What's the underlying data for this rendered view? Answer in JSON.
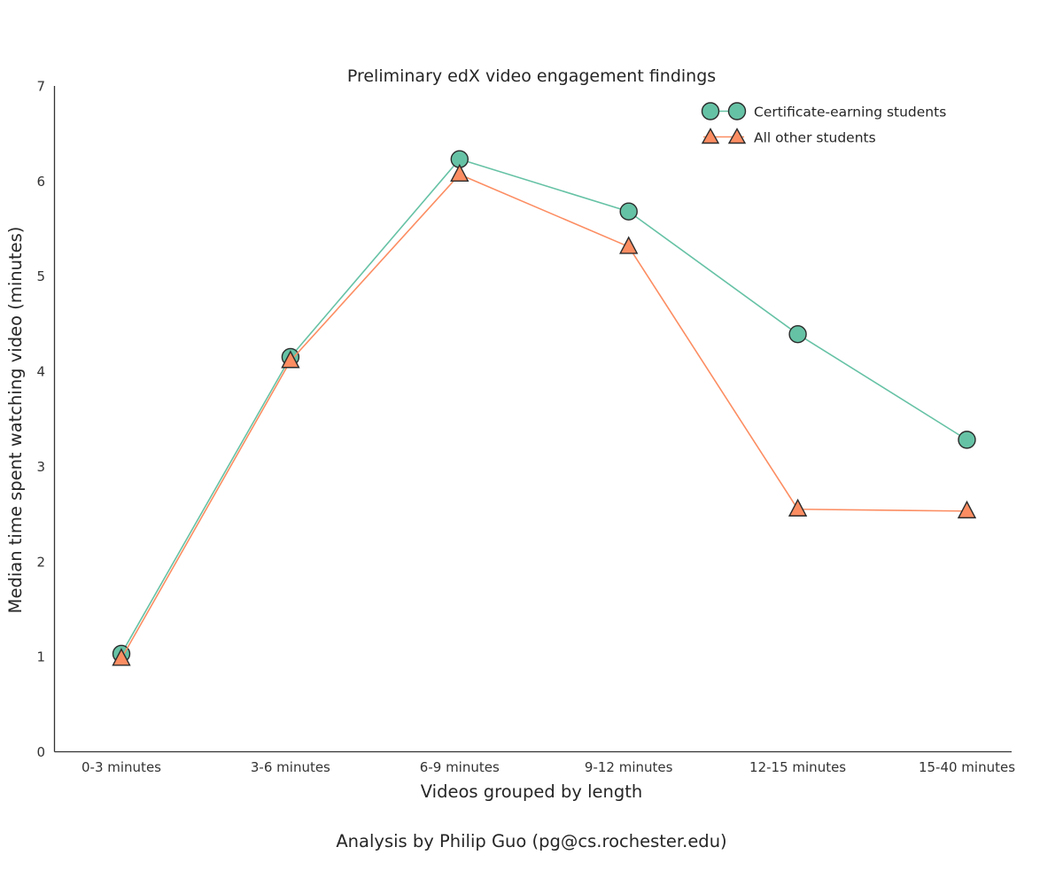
{
  "chart_data": {
    "type": "line",
    "title": "Preliminary edX video engagement findings",
    "xlabel": "Videos grouped by length",
    "ylabel": "Median time spent watching video (minutes)",
    "caption": "Analysis by Philip Guo (pg@cs.rochester.edu)",
    "categories": [
      "0-3 minutes",
      "3-6 minutes",
      "6-9 minutes",
      "9-12 minutes",
      "12-15 minutes",
      "15-40 minutes"
    ],
    "yticks": [
      0,
      1,
      2,
      3,
      4,
      5,
      6,
      7
    ],
    "ylim": [
      0,
      7
    ],
    "grid": false,
    "legend_position": "upper right",
    "series": [
      {
        "name": "Certificate-earning students",
        "marker": "circle",
        "color": "#66c2a5",
        "values": [
          1.03,
          4.15,
          6.23,
          5.68,
          4.39,
          3.28
        ]
      },
      {
        "name": "All other students",
        "marker": "triangle",
        "color": "#fc8d62",
        "values": [
          0.98,
          4.11,
          6.07,
          5.31,
          2.55,
          2.53
        ]
      }
    ],
    "colors": {
      "axis": "#333333",
      "text": "#262626",
      "marker_edge": "#2b2b2b"
    }
  }
}
